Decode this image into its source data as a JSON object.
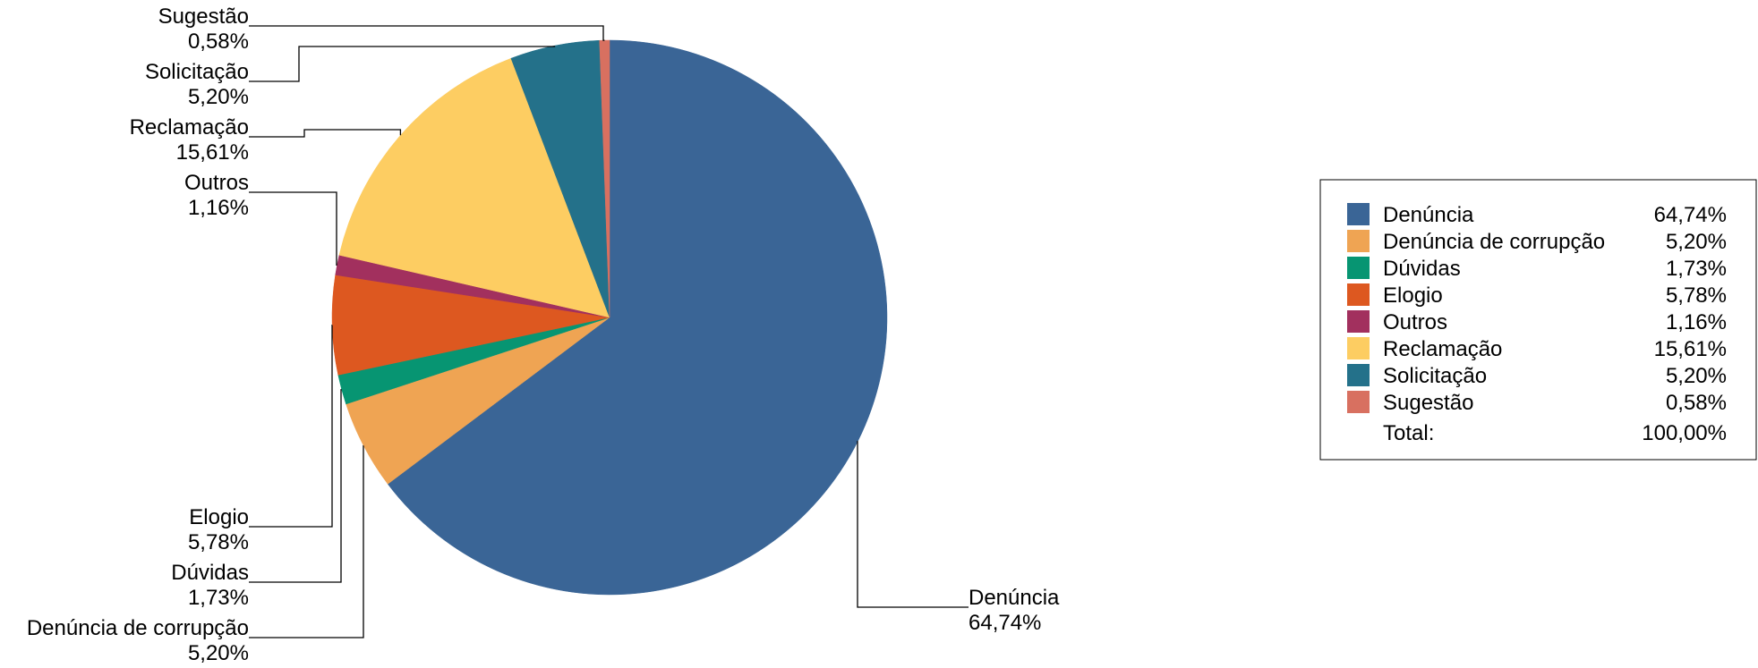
{
  "chart_data": {
    "type": "pie",
    "slices": [
      {
        "name": "Denúncia",
        "value": 64.74,
        "label": "64,74%",
        "color": "#3A6596"
      },
      {
        "name": "Denúncia de corrupção",
        "value": 5.2,
        "label": "5,20%",
        "color": "#EFA453"
      },
      {
        "name": "Dúvidas",
        "value": 1.73,
        "label": "1,73%",
        "color": "#079572"
      },
      {
        "name": "Elogio",
        "value": 5.78,
        "label": "5,78%",
        "color": "#DD5820"
      },
      {
        "name": "Outros",
        "value": 1.16,
        "label": "1,16%",
        "color": "#A2305E"
      },
      {
        "name": "Reclamação",
        "value": 15.61,
        "label": "15,61%",
        "color": "#FDCD62"
      },
      {
        "name": "Solicitação",
        "value": 5.2,
        "label": "5,20%",
        "color": "#24718A"
      },
      {
        "name": "Sugestão",
        "value": 0.58,
        "label": "0,58%",
        "color": "#D87060"
      }
    ],
    "legend": {
      "placement": "right",
      "total_label": "Total:",
      "total_value": "100,00%"
    }
  }
}
